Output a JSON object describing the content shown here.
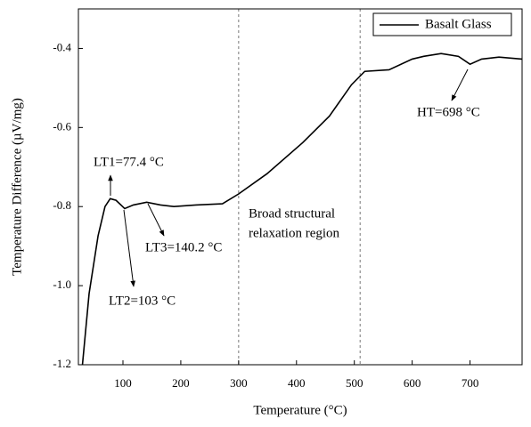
{
  "chart_data": {
    "type": "line",
    "x_label": "Temperature (°C)",
    "y_label": "Temperature Difference (µV/mg)",
    "x": [
      30,
      41.5,
      57,
      69,
      78,
      88,
      103,
      118,
      141,
      165,
      188,
      226,
      272,
      300,
      349,
      411,
      457,
      495,
      518,
      560,
      600,
      620,
      650,
      680,
      700,
      720,
      750,
      790
    ],
    "series": [
      {
        "name": "Basalt Glass",
        "color": "#000000",
        "values": [
          -1.2,
          -1.02,
          -0.874,
          -0.8,
          -0.78,
          -0.784,
          -0.805,
          -0.796,
          -0.789,
          -0.796,
          -0.8,
          -0.796,
          -0.793,
          -0.768,
          -0.717,
          -0.638,
          -0.571,
          -0.492,
          -0.458,
          -0.454,
          -0.427,
          -0.42,
          -0.413,
          -0.42,
          -0.44,
          -0.427,
          -0.422,
          -0.427
        ]
      }
    ],
    "xlim": [
      23,
      790
    ],
    "xticks": [
      100,
      200,
      300,
      400,
      500,
      600,
      700
    ],
    "ylim": [
      -1.2,
      -0.3
    ],
    "yticks": [
      -1.2,
      {
        "value": -1,
        "label": "-1.0"
      },
      -0.8,
      -0.6,
      -0.4
    ],
    "vlines": [
      300,
      510
    ],
    "legend": "upper right",
    "annotations": [
      "LT1=77.4 °C",
      "LT2=103 °C",
      "LT3=140.2 °C",
      "HT=698 °C",
      "Broad structural",
      "relaxation region"
    ]
  }
}
